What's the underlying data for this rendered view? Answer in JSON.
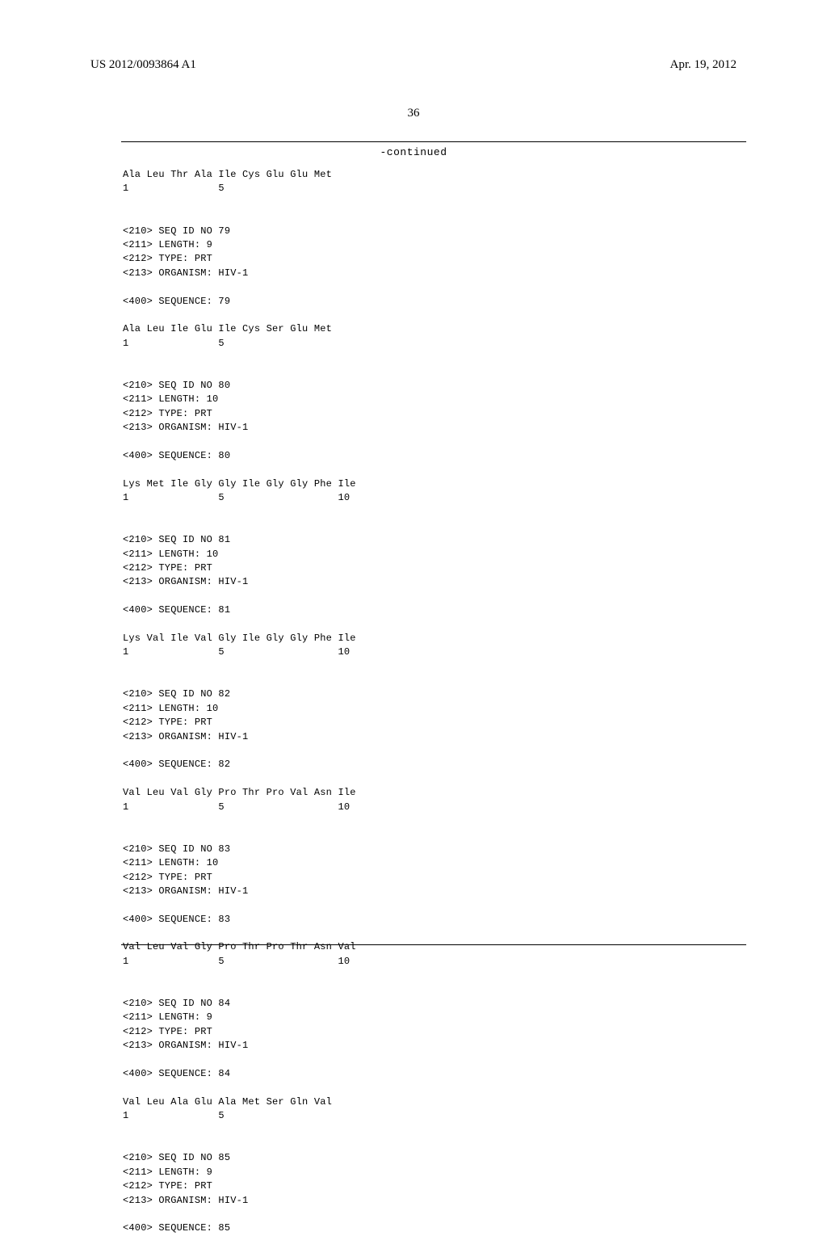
{
  "header": {
    "publication_id": "US 2012/0093864 A1",
    "date": "Apr. 19, 2012"
  },
  "page_number": "36",
  "continued_label": "-continued",
  "sequences": [
    {
      "residues_line": "Ala Leu Thr Ala Ile Cys Glu Glu Met",
      "positions_line": "1               5"
    },
    {
      "meta": [
        "<210> SEQ ID NO 79",
        "<211> LENGTH: 9",
        "<212> TYPE: PRT",
        "<213> ORGANISM: HIV-1"
      ],
      "seq_label": "<400> SEQUENCE: 79",
      "residues_line": "Ala Leu Ile Glu Ile Cys Ser Glu Met",
      "positions_line": "1               5"
    },
    {
      "meta": [
        "<210> SEQ ID NO 80",
        "<211> LENGTH: 10",
        "<212> TYPE: PRT",
        "<213> ORGANISM: HIV-1"
      ],
      "seq_label": "<400> SEQUENCE: 80",
      "residues_line": "Lys Met Ile Gly Gly Ile Gly Gly Phe Ile",
      "positions_line": "1               5                   10"
    },
    {
      "meta": [
        "<210> SEQ ID NO 81",
        "<211> LENGTH: 10",
        "<212> TYPE: PRT",
        "<213> ORGANISM: HIV-1"
      ],
      "seq_label": "<400> SEQUENCE: 81",
      "residues_line": "Lys Val Ile Val Gly Ile Gly Gly Phe Ile",
      "positions_line": "1               5                   10"
    },
    {
      "meta": [
        "<210> SEQ ID NO 82",
        "<211> LENGTH: 10",
        "<212> TYPE: PRT",
        "<213> ORGANISM: HIV-1"
      ],
      "seq_label": "<400> SEQUENCE: 82",
      "residues_line": "Val Leu Val Gly Pro Thr Pro Val Asn Ile",
      "positions_line": "1               5                   10"
    },
    {
      "meta": [
        "<210> SEQ ID NO 83",
        "<211> LENGTH: 10",
        "<212> TYPE: PRT",
        "<213> ORGANISM: HIV-1"
      ],
      "seq_label": "<400> SEQUENCE: 83",
      "residues_line": "Val Leu Val Gly Pro Thr Pro Thr Asn Val",
      "positions_line": "1               5                   10"
    },
    {
      "meta": [
        "<210> SEQ ID NO 84",
        "<211> LENGTH: 9",
        "<212> TYPE: PRT",
        "<213> ORGANISM: HIV-1"
      ],
      "seq_label": "<400> SEQUENCE: 84",
      "residues_line": "Val Leu Ala Glu Ala Met Ser Gln Val",
      "positions_line": "1               5"
    },
    {
      "meta": [
        "<210> SEQ ID NO 85",
        "<211> LENGTH: 9",
        "<212> TYPE: PRT",
        "<213> ORGANISM: HIV-1"
      ],
      "seq_label": "<400> SEQUENCE: 85"
    }
  ]
}
